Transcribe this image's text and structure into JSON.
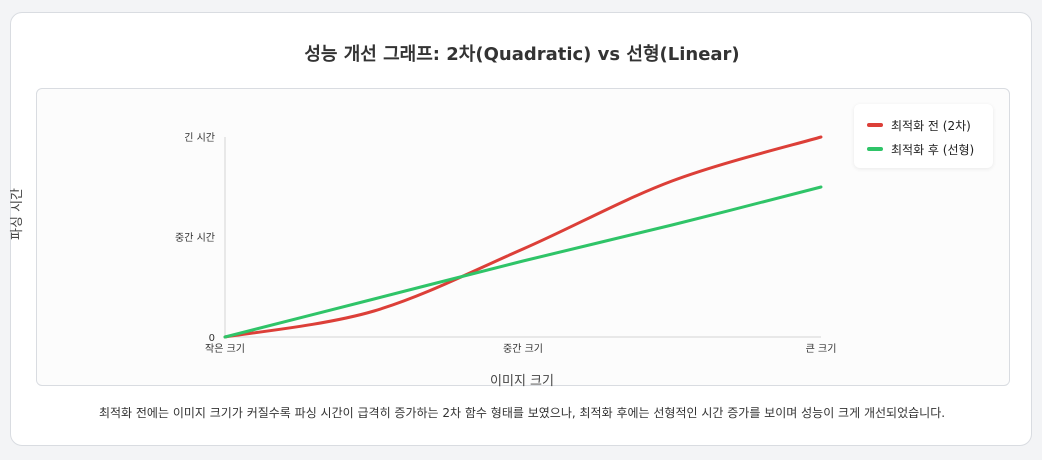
{
  "chart_data": {
    "type": "line",
    "title": "성능 개선 그래프: 2차(Quadratic) vs 선형(Linear)",
    "xlabel": "이미지 크기",
    "ylabel": "파싱 시간",
    "categories": [
      "작은 크기",
      "중간 크기",
      "큰 크기"
    ],
    "y_tick_labels": [
      "0",
      "중간 시간",
      "긴 시간"
    ],
    "x": [
      0,
      0.25,
      0.5,
      0.75,
      1
    ],
    "ylim": [
      0,
      1
    ],
    "grid": false,
    "legend_position": "top-right",
    "series": [
      {
        "name": "최적화 전 (2차)",
        "color": "#dc3f38",
        "values": [
          0,
          0.13,
          0.44,
          0.78,
          1
        ]
      },
      {
        "name": "최적화 후 (선형)",
        "color": "#2fc468",
        "values": [
          0,
          0.19,
          0.38,
          0.56,
          0.75
        ]
      }
    ]
  },
  "caption": "최적화 전에는 이미지 크기가 커질수록 파싱 시간이 급격히 증가하는 2차 함수 형태를 보였으나, 최적화 후에는 선형적인 시간 증가를 보이며 성능이 크게 개선되었습니다."
}
